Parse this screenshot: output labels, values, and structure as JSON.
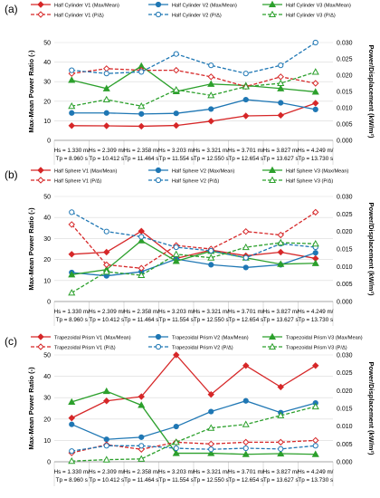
{
  "figure": {
    "x_categories": [
      [
        "Hs = 1.330 m/",
        "Tp = 8.960 s"
      ],
      [
        "Hs = 2.309 m/",
        "Tp = 10.412 s"
      ],
      [
        "Hs = 2.358 m/",
        "Tp = 11.464 s"
      ],
      [
        "Hs = 3.203 m/",
        "Tp = 11.554 s"
      ],
      [
        "Hs = 3.321 m/",
        "Tp = 12.550 s"
      ],
      [
        "Hs = 3.701 m/",
        "Tp = 12.654 s"
      ],
      [
        "Hs = 3.827 m/",
        "Tp = 13.627 s"
      ],
      [
        "Hs = 4.249 m/",
        "Tp = 13.730 s"
      ]
    ],
    "colors": {
      "v1": "#d62728",
      "v2": "#1f77b4",
      "v3": "#2ca02c"
    }
  },
  "chart_data": [
    {
      "type": "line",
      "panel_label": "(a)",
      "ylabel": "Max-Mean Power Ratio (-)",
      "y2label": "Power/Displacement (kW/m²)",
      "ylim": [
        0,
        50
      ],
      "y_ticks": [
        "0",
        "10",
        "20",
        "30",
        "40",
        "50"
      ],
      "y2lim": [
        0,
        0.03
      ],
      "y2_ticks": [
        "0.000",
        "0.005",
        "0.010",
        "0.015",
        "0.020",
        "0.025",
        "0.030"
      ],
      "series": [
        {
          "name": "Half Cylinder V1 (Max/Mean)",
          "axis": "left",
          "color": "#d62728",
          "dash": false,
          "marker": "diamond",
          "values": [
            7.5,
            7.4,
            7.2,
            7.6,
            9.8,
            12.5,
            12.8,
            19.0
          ]
        },
        {
          "name": "Half Cylinder V2 (Max/Mean)",
          "axis": "left",
          "color": "#1f77b4",
          "dash": false,
          "marker": "circle",
          "values": [
            14.0,
            14.0,
            13.5,
            13.8,
            16.0,
            20.8,
            19.2,
            15.8
          ]
        },
        {
          "name": "Half Cylinder V3 (Max/Mean)",
          "axis": "left",
          "color": "#2ca02c",
          "dash": false,
          "marker": "triangle",
          "values": [
            30.8,
            26.5,
            38.0,
            25.0,
            28.8,
            28.0,
            26.5,
            24.8
          ]
        },
        {
          "name": "Half Cylinder V1 (P/Δ)",
          "axis": "right",
          "color": "#d62728",
          "dash": true,
          "marker": "diamond",
          "values": [
            0.0205,
            0.022,
            0.0215,
            0.0215,
            0.0195,
            0.0165,
            0.0195,
            0.0175
          ]
        },
        {
          "name": "Half Cylinder V2 (P/Δ)",
          "axis": "right",
          "color": "#1f77b4",
          "dash": true,
          "marker": "circle",
          "values": [
            0.0215,
            0.0205,
            0.021,
            0.0265,
            0.023,
            0.0205,
            0.023,
            0.03
          ]
        },
        {
          "name": "Half Cylinder V3 (P/Δ)",
          "axis": "right",
          "color": "#2ca02c",
          "dash": true,
          "marker": "triangle",
          "values": [
            0.0105,
            0.0125,
            0.0105,
            0.0155,
            0.0138,
            0.0165,
            0.0175,
            0.021
          ]
        }
      ]
    },
    {
      "type": "line",
      "panel_label": "(b)",
      "ylabel": "Max-Mean Power Ratio (-)",
      "y2label": "Power/Displacement (kW/m²)",
      "ylim": [
        0,
        50
      ],
      "y_ticks": [
        "0",
        "10",
        "20",
        "30",
        "40",
        "50"
      ],
      "y2lim": [
        0,
        0.03
      ],
      "y2_ticks": [
        "0.000",
        "0.005",
        "0.010",
        "0.015",
        "0.020",
        "0.025",
        "0.030"
      ],
      "series": [
        {
          "name": "Half Sphere V1 (Max/Mean)",
          "axis": "left",
          "color": "#d62728",
          "dash": false,
          "marker": "diamond",
          "values": [
            22.5,
            23.5,
            33.5,
            20.5,
            24.5,
            21.8,
            23.5,
            20.5
          ]
        },
        {
          "name": "Half Sphere V2 (Max/Mean)",
          "axis": "left",
          "color": "#1f77b4",
          "dash": false,
          "marker": "circle",
          "values": [
            13.8,
            12.2,
            14.2,
            20.2,
            17.5,
            16.2,
            17.5,
            23.2
          ]
        },
        {
          "name": "Half Sphere V3 (Max/Mean)",
          "axis": "left",
          "color": "#2ca02c",
          "dash": false,
          "marker": "triangle",
          "values": [
            12.8,
            15.2,
            29.0,
            19.2,
            24.0,
            20.8,
            17.8,
            18.2
          ]
        },
        {
          "name": "Half Sphere V1 (P/Δ)",
          "axis": "right",
          "color": "#d62728",
          "dash": true,
          "marker": "diamond",
          "values": [
            0.022,
            0.0105,
            0.0095,
            0.016,
            0.015,
            0.02,
            0.019,
            0.0255
          ]
        },
        {
          "name": "Half Sphere V2 (P/Δ)",
          "axis": "right",
          "color": "#1f77b4",
          "dash": true,
          "marker": "circle",
          "values": [
            0.0255,
            0.02,
            0.0185,
            0.0155,
            0.0145,
            0.0125,
            0.0165,
            0.0155
          ]
        },
        {
          "name": "Half Sphere V3 (P/Δ)",
          "axis": "right",
          "color": "#2ca02c",
          "dash": true,
          "marker": "triangle",
          "values": [
            0.0025,
            0.0085,
            0.0075,
            0.0135,
            0.0125,
            0.0155,
            0.0168,
            0.0165
          ]
        }
      ]
    },
    {
      "type": "line",
      "panel_label": "(c)",
      "ylabel": "Max-Mean Power Ratio (-)",
      "y2label": "Power/Displacement (kW/m²)",
      "ylim": [
        0,
        50
      ],
      "y_ticks": [
        "0",
        "10",
        "20",
        "30",
        "40",
        "50"
      ],
      "y2lim": [
        0,
        0.03
      ],
      "y2_ticks": [
        "0.000",
        "0.005",
        "0.010",
        "0.015",
        "0.020",
        "0.025",
        "0.030"
      ],
      "series": [
        {
          "name": "Trapezoidal Prism V1 (Max/Mean)",
          "axis": "left",
          "color": "#d62728",
          "dash": false,
          "marker": "diamond",
          "values": [
            20.5,
            28.5,
            30.5,
            50.0,
            31.5,
            45.0,
            35.0,
            45.0
          ]
        },
        {
          "name": "Trapezoidal Prism V2 (Max/Mean)",
          "axis": "left",
          "color": "#1f77b4",
          "dash": false,
          "marker": "circle",
          "values": [
            17.5,
            10.5,
            11.5,
            16.5,
            23.5,
            28.5,
            23.0,
            27.5
          ]
        },
        {
          "name": "Trapezoidal Prism V3 (Max/Mean)",
          "axis": "left",
          "color": "#2ca02c",
          "dash": false,
          "marker": "triangle",
          "values": [
            28.0,
            33.0,
            26.5,
            4.0,
            4.0,
            3.5,
            3.8,
            3.5
          ]
        },
        {
          "name": "Trapezoidal Prism V1 (P/Δ)",
          "axis": "right",
          "color": "#d62728",
          "dash": true,
          "marker": "diamond",
          "values": [
            0.0025,
            0.0048,
            0.0035,
            0.0055,
            0.005,
            0.0055,
            0.0055,
            0.006
          ]
        },
        {
          "name": "Trapezoidal Prism V2 (P/Δ)",
          "axis": "right",
          "color": "#1f77b4",
          "dash": true,
          "marker": "circle",
          "values": [
            0.003,
            0.0045,
            0.0045,
            0.0038,
            0.0035,
            0.0038,
            0.0036,
            0.0045
          ]
        },
        {
          "name": "Trapezoidal Prism V3 (P/Δ)",
          "axis": "right",
          "color": "#2ca02c",
          "dash": true,
          "marker": "triangle",
          "values": [
            0.0002,
            0.0006,
            0.0008,
            0.0055,
            0.0095,
            0.0105,
            0.013,
            0.0155
          ]
        }
      ]
    }
  ]
}
